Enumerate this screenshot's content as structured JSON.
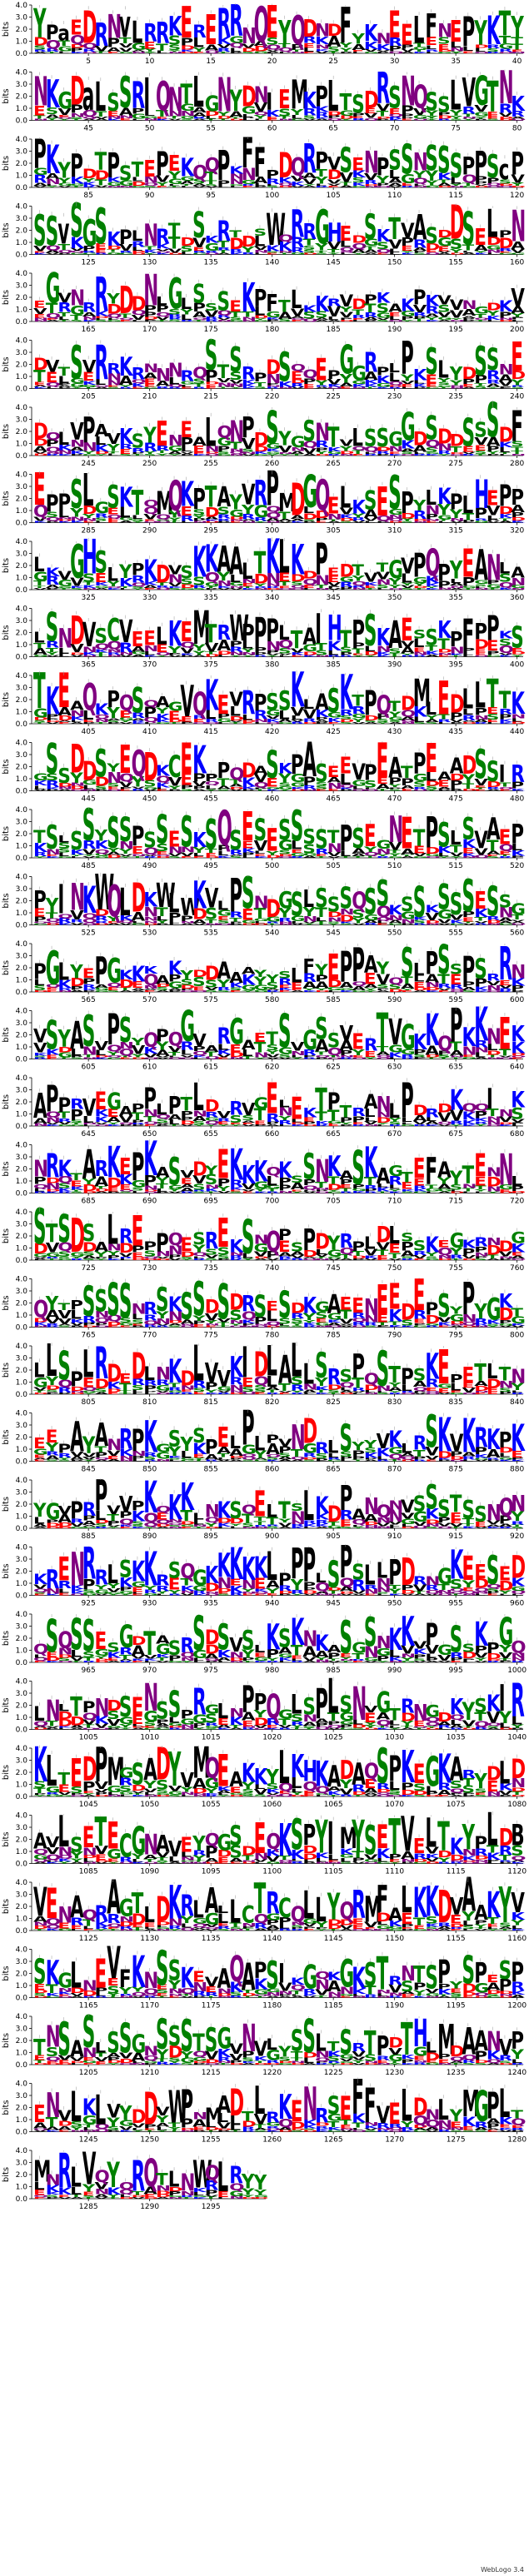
{
  "chart_data": {
    "type": "sequence-logo",
    "ylabel": "bits",
    "ylim": [
      0,
      4.0
    ],
    "y_ticks": [
      "0.0",
      "1.0",
      "2.0",
      "3.0",
      "4.0"
    ],
    "alphabet_colors": {
      "A": "#000000",
      "V": "#000000",
      "L": "#000000",
      "I": "#000000",
      "M": "#000000",
      "F": "#000000",
      "W": "#000000",
      "P": "#000000",
      "G": "#008000",
      "S": "#008000",
      "T": "#008000",
      "Y": "#008000",
      "C": "#008000",
      "N": "#800080",
      "Q": "#800080",
      "K": "#0000ff",
      "R": "#0000ff",
      "H": "#0000ff",
      "D": "#ff0000",
      "E": "#ff0000"
    },
    "positions_per_row": 40,
    "total_positions": 1299,
    "rows": [
      {
        "start": 1,
        "ticks": [
          5,
          10,
          15,
          20,
          25,
          30,
          35,
          40
        ],
        "top_letters": "YsaEDRNvLRRKEsERRNQEYQDssFsssEELFsEPYKT"
      },
      {
        "start": 41,
        "ticks": [
          45,
          50,
          55,
          60,
          65,
          70,
          75,
          80
        ],
        "top_letters": "NKGDaLSSRIQNTLGNYDsIEMKPLsSDRSNQSSLVGT"
      },
      {
        "start": 81,
        "ticks": [
          85,
          90,
          95,
          100,
          105,
          110,
          115,
          120
        ],
        "top_letters": "PKsPsTPsTEPsKssPsFFsDsRPsSsNPSSsSSSsPSc"
      },
      {
        "start": 121,
        "ticks": [
          125,
          130,
          135,
          140,
          145,
          150,
          155,
          160
        ],
        "top_letters": "SSvSGSsssNsssSsRsssWsRsGHssSsTsASsDSsLsNH"
      },
      {
        "start": 161,
        "ticks": [
          165,
          170,
          175,
          180,
          185,
          190,
          195,
          200
        ],
        "top_letters": "sGsNsRsDsNsGsSsSsKsFsLsssssssssssssssss"
      },
      {
        "start": 201,
        "ticks": [
          205,
          210,
          215,
          220,
          225,
          230,
          235,
          240
        ],
        "top_letters": "sssSsRsKssssssSsSsssSssEsGsRssPsSsssSSsE"
      },
      {
        "start": 241,
        "ticks": [
          245,
          250,
          255,
          260,
          265,
          270,
          275,
          280
        ],
        "top_letters": "ssssPsssssEsEsLsNPsSssSsTsLsSsGsSssSsSsF"
      },
      {
        "start": 281,
        "ticks": [
          285,
          290,
          295,
          300,
          305,
          310,
          315,
          320
        ],
        "top_letters": "EPPSLbSKTsMQKPTAYVRPMDGQELsSESPsLKPLH"
      },
      {
        "start": 321,
        "ticks": [
          325,
          330,
          335,
          340,
          345,
          350,
          355,
          360
        ],
        "top_letters": "sssGHSsssKsssKKAALTKLKsPsssssssPQPsEAN"
      },
      {
        "start": 361,
        "ticks": [
          365,
          370,
          375,
          380,
          385,
          390,
          395,
          400
        ],
        "top_letters": "sSNDVsCVEELKEMTsWPPPLTAIHTPSKAEsSKPFPP"
      },
      {
        "start": 401,
        "ticks": [
          405,
          410,
          415,
          420,
          425,
          430,
          435,
          440
        ],
        "top_letters": "TKEsQsssSsssVQKEsRPSSKsASKsPQssMsEDLLT"
      },
      {
        "start": 441,
        "ticks": [
          445,
          450,
          455,
          460,
          465,
          470,
          475,
          480
        ],
        "top_letters": "sSSDDSsEQDsCEKsPsssSsPASsssPEAsPEsADSSI"
      },
      {
        "start": 481,
        "ticks": [
          485,
          490,
          495,
          500,
          505,
          510,
          515,
          520
        ],
        "top_letters": "sSsSSsSSPSSsSsSQSESESSSSsPSEsNEsPSsSsAEPEP"
      },
      {
        "start": 521,
        "ticks": [
          525,
          530,
          535,
          540,
          545,
          550,
          555,
          560
        ],
        "top_letters": "PsINKWQLDKWLWKVsPSsssSsSSSsSSsSSsSSSsSssK"
      },
      {
        "start": 561,
        "ticks": [
          565,
          570,
          575,
          580,
          585,
          590,
          595,
          600
        ],
        "top_letters": "sGsssPGsKsssssssssssssFsEPPsssSsPSsPSsRsss"
      },
      {
        "start": 601,
        "ticks": [
          605,
          610,
          615,
          620,
          625,
          630,
          635,
          640
        ],
        "top_letters": "sSsASsPSssssGsssGsssSsGSSsssTVGKKQPKKsEK"
      },
      {
        "start": 641,
        "ticks": [
          645,
          650,
          655,
          660,
          665,
          670,
          675,
          680
        ],
        "top_letters": "APsssssssPsssLsssssEsEsTPsssssPsssKssIsKssP"
      },
      {
        "start": 681,
        "ticks": [
          685,
          690,
          695,
          700,
          705,
          710,
          715,
          720
        ],
        "top_letters": "sRKsARKEPKsSsssEKKKsKsSNKsSKsssEFssTEsN"
      },
      {
        "start": 721,
        "ticks": [
          725,
          730,
          735,
          740,
          745,
          750,
          755,
          760
        ],
        "top_letters": "STSDSsLsEsPssssEsSsQssPDsssssssssssssssssss"
      },
      {
        "start": 761,
        "ticks": [
          765,
          770,
          775,
          780,
          785,
          790,
          795,
          800
        ],
        "top_letters": "ssssSSSSssSsSSsSssSsSsKsAsEsEEsEsSsPsGsssE"
      },
      {
        "start": 801,
        "ticks": [
          805,
          810,
          815,
          820,
          825,
          830,
          835,
          840
        ],
        "top_letters": "LLSPLRDsDssKsLVVKIDLALLSRsPsSsPsKEsEsssss"
      },
      {
        "start": 841,
        "ticks": [
          845,
          850,
          855,
          860,
          865,
          870,
          875,
          880
        ],
        "top_letters": "sssAsAsRPKsSsssEsPsssNDssSsssKssSKsKRKPKS"
      },
      {
        "start": 881,
        "ticks": [
          885,
          890,
          895,
          900,
          905,
          910,
          915,
          920
        ],
        "top_letters": "sssPsPsssKsKKsssssEsssLssPsssssSSSsSsssss"
      },
      {
        "start": 921,
        "ticks": [
          925,
          930,
          935,
          940,
          945,
          950,
          955,
          960
        ],
        "top_letters": "sRENRsLSKKsSsssKKKKLsPPsSPsLsPDsssKEsSsDsRS"
      },
      {
        "start": 961,
        "ticks": [
          965,
          970,
          975,
          980,
          985,
          990,
          995,
          1000
        ],
        "top_letters": "sSsSSssGsTsSsSsSsSsKSKsKsSsSsKKsPsSsKsGsSsK"
      },
      {
        "start": 1001,
        "ticks": [
          1005,
          1010,
          1015,
          1020,
          1025,
          1030,
          1035,
          1040
        ],
        "top_letters": "sNsTsNsSsNsSsRsLsPsQsLsPLsNsGsssssssssIRRs"
      },
      {
        "start": 1041,
        "ticks": [
          1045,
          1050,
          1055,
          1060,
          1065,
          1070,
          1075,
          1080
        ],
        "top_letters": "KLsEDPMsSADYVMQEAKKsLKHKADAbSPKEGKAsYsLD"
      },
      {
        "start": 1081,
        "ticks": [
          1085,
          1090,
          1095,
          1100,
          1105,
          1110,
          1115,
          1120
        ],
        "top_letters": "AsLSETECGNAsEsssSsEsKSPYIMYSETVELTKYsLsBLK"
      },
      {
        "start": 1121,
        "ticks": [
          1125,
          1130,
          1135,
          1140,
          1145,
          1150,
          1155,
          1160
        ],
        "top_letters": "VEsAsRAsTsDKRLAsLCTRCsLLYsRMFsLKKDsAsKY"
      },
      {
        "start": 1161,
        "ticks": [
          1165,
          1170,
          1175,
          1180,
          1185,
          1190,
          1195,
          1200
        ],
        "top_letters": "SKsLsEVFKNSSKssAQAPSIsGssGKSTsssSPsSPsSPsSP"
      },
      {
        "start": 1201,
        "ticks": [
          1205,
          1210,
          1215,
          1220,
          1225,
          1230,
          1235,
          1240
        ],
        "top_letters": "sNSsSsSSGsSSSTSGsNsssSSssSsTPsTHsMsAANVsTT"
      },
      {
        "start": 1241,
        "ticks": [
          1245,
          1250,
          1255,
          1260,
          1265,
          1270,
          1275,
          1280
        ],
        "top_letters": "sNsLsLsYsDsWPsMADsLsKENRsEFFsELDsLsMGPLsHSsS"
      },
      {
        "start": 1281,
        "ticks": [
          1285,
          1290,
          1295
        ],
        "top_letters": "MsRLVsYsRQsLsWsLRsbsA"
      }
    ]
  },
  "footer": {
    "label": "WebLogo 3.4"
  }
}
